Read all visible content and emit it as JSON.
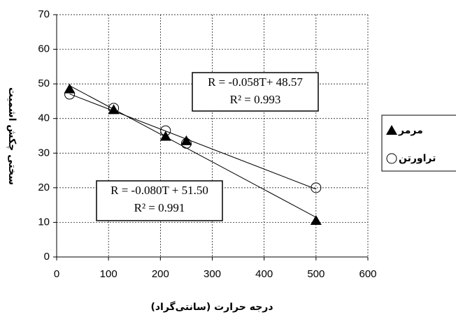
{
  "chart_data": {
    "type": "scatter",
    "x_label": "درجه حرارت (سانتی‌گراد)",
    "y_label": "سختی چکش اشمیت",
    "xlim": [
      0,
      600
    ],
    "xticks": [
      0,
      100,
      200,
      300,
      400,
      500,
      600
    ],
    "ylim": [
      0,
      70
    ],
    "yticks": [
      0,
      10,
      20,
      30,
      40,
      50,
      60,
      70
    ],
    "grid": true,
    "trendline": true,
    "legend": "right",
    "series": [
      {
        "name": "مرمر",
        "marker": "triangle",
        "color": "#000000",
        "x": [
          25,
          110,
          210,
          250,
          500
        ],
        "values": [
          48.5,
          42.5,
          34.8,
          33.5,
          10.5
        ]
      },
      {
        "name": "تراورتن",
        "marker": "circle",
        "color": "#000000",
        "x": [
          25,
          110,
          210,
          250,
          500
        ],
        "values": [
          47,
          43,
          36.5,
          32.8,
          20
        ]
      }
    ],
    "annotations": [
      {
        "lines": [
          "R = -0.058T+ 48.57",
          "R² = 0.993"
        ]
      },
      {
        "lines": [
          "R = -0.080T + 51.50",
          "R² = 0.991"
        ]
      }
    ]
  }
}
